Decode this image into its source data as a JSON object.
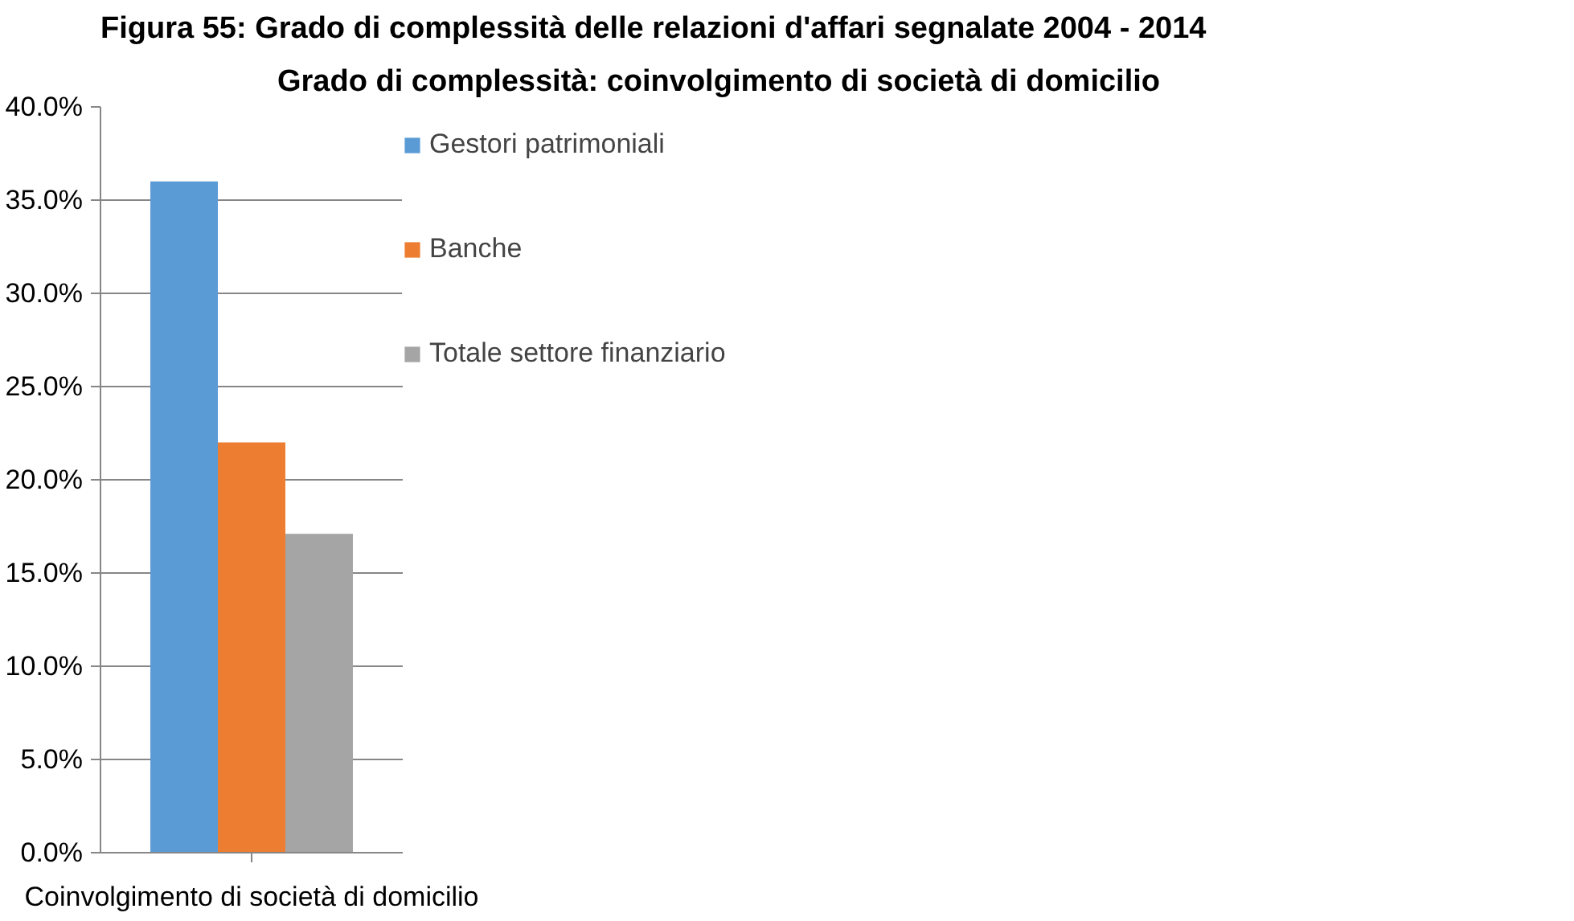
{
  "chart_data": {
    "type": "bar",
    "title": "Grado di complessità: coinvolgimento di società di domicilio",
    "annotations": [
      "Figura 55: Grado di complessità delle relazioni d'affari segnalate 2004 - 2014"
    ],
    "categories": [
      "Coinvolgimento di società di domicilio"
    ],
    "series": [
      {
        "name": "Gestori patrimoniali",
        "color": "#5b9bd5",
        "values": [
          36.0
        ]
      },
      {
        "name": "Banche",
        "color": "#ed7d31",
        "values": [
          22.0
        ]
      },
      {
        "name": "Totale settore finanziario",
        "color": "#a5a5a5",
        "values": [
          17.1
        ]
      }
    ],
    "ylim": [
      0,
      40
    ],
    "yticks": [
      {
        "value": 0,
        "label": "0.0%"
      },
      {
        "value": 5,
        "label": "5.0%"
      },
      {
        "value": 10,
        "label": "10.0%"
      },
      {
        "value": 15,
        "label": "15.0%"
      },
      {
        "value": 20,
        "label": "20.0%"
      },
      {
        "value": 25,
        "label": "25.0%"
      },
      {
        "value": 30,
        "label": "30.0%"
      },
      {
        "value": 35,
        "label": "35.0%"
      },
      {
        "value": 40,
        "label": "40.0%"
      }
    ],
    "grid": "y",
    "legend": "right"
  }
}
